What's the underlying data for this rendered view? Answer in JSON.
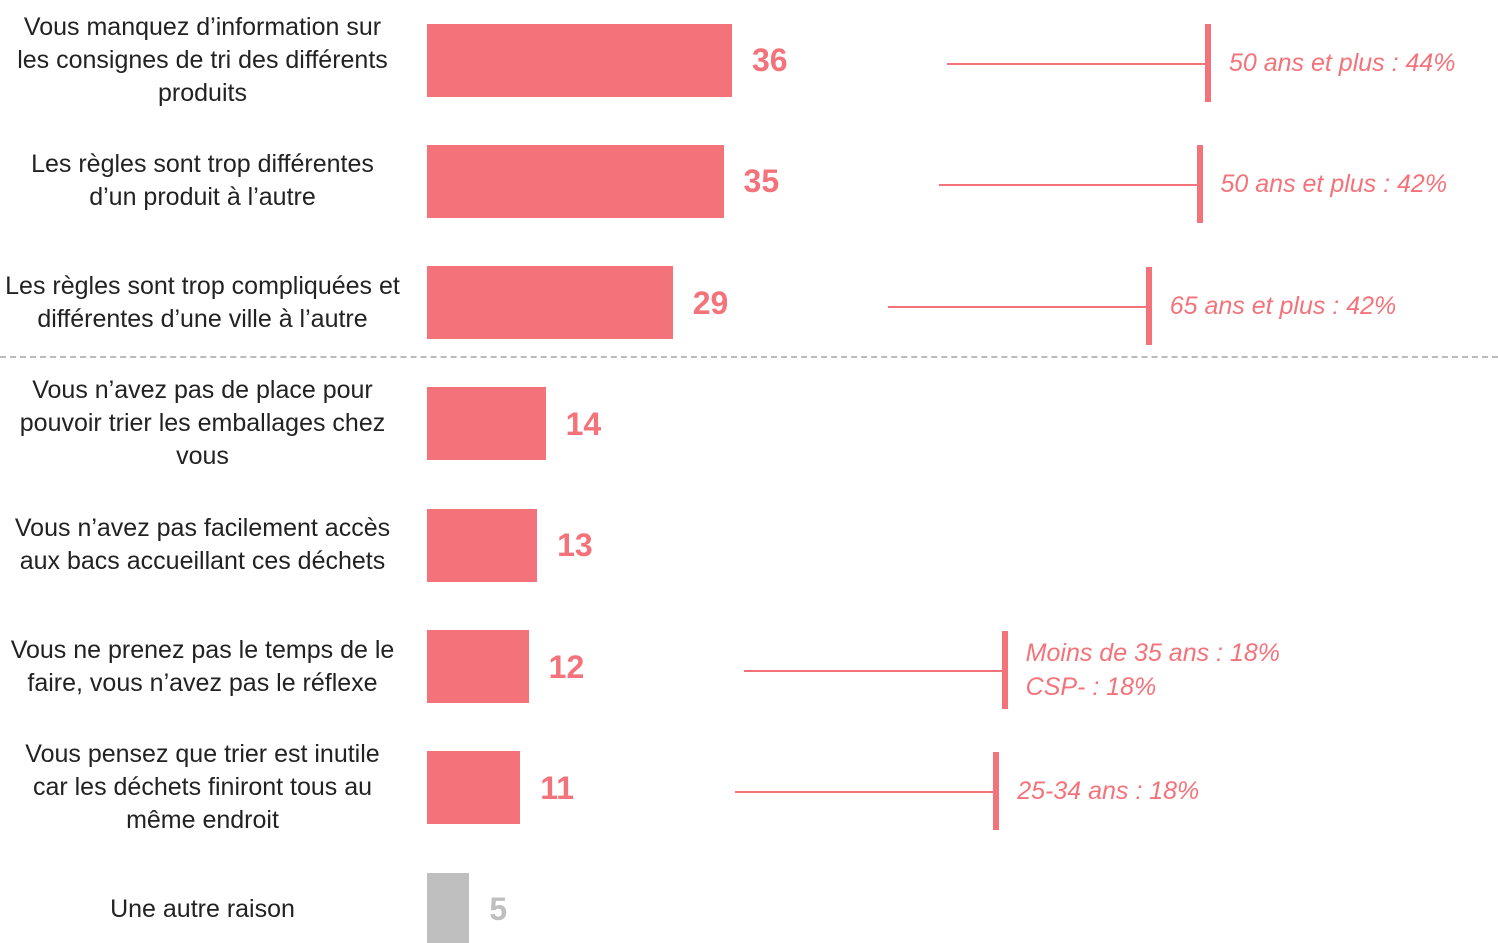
{
  "chart_data": {
    "type": "bar",
    "orientation": "horizontal",
    "categories": [
      "Vous manquez d’information sur les consignes de tri des différents produits",
      "Les règles sont trop différentes d’un produit à l’autre",
      "Les règles sont trop compliquées et différentes d’une ville à l’autre",
      "Vous n’avez pas de place pour pouvoir trier les emballages chez vous",
      "Vous n’avez pas facilement accès aux bacs accueillant ces déchets",
      "Vous ne prenez pas le temps de le faire, vous n’avez pas le réflexe",
      "Vous pensez que trier est inutile car les déchets finiront tous au même endroit",
      "Une autre raison"
    ],
    "values": [
      36,
      35,
      29,
      14,
      13,
      12,
      11,
      5
    ],
    "colors": [
      "#f4737a",
      "#f4737a",
      "#f4737a",
      "#f4737a",
      "#f4737a",
      "#f4737a",
      "#f4737a",
      "#bfbfbf"
    ],
    "annotations": [
      [
        "50 ans et plus : 44%"
      ],
      [
        "50 ans et plus : 42%"
      ],
      [
        "65 ans et plus : 42%"
      ],
      null,
      null,
      [
        "Moins de 35 ans : 18%",
        "CSP- : 18%"
      ],
      [
        "25-34 ans : 18%"
      ],
      null
    ],
    "annotation_color": "#f4737a",
    "xlim": [
      0,
      36
    ]
  }
}
